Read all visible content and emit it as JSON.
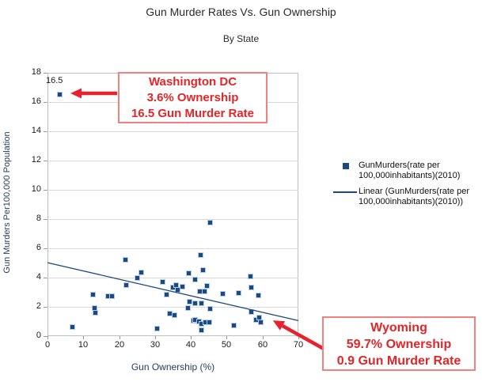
{
  "title": "Gun Murder Rates Vs. Gun Ownership",
  "subtitle": "By State",
  "colors": {
    "point": "#1b4a7e",
    "trendline": "#1f497d",
    "annotation_text": "#e42528",
    "annotation_border": "#f28080",
    "arrow": "#e8212e",
    "gridline": "#d9d9d9",
    "axis_title": "#243f60"
  },
  "chart_data": {
    "type": "scatter",
    "title": "Gun Murder Rates Vs. Gun Ownership",
    "subtitle": "By State",
    "xlabel": "Gun Ownership (%)",
    "ylabel": "Gun Murders Per100,000 Population",
    "xlim": [
      0,
      70
    ],
    "ylim": [
      0,
      18
    ],
    "xticks": [
      0,
      10,
      20,
      30,
      40,
      50,
      60,
      70
    ],
    "yticks": [
      0,
      2,
      4,
      6,
      8,
      10,
      12,
      14,
      16,
      18
    ],
    "grid": "horizontal",
    "legend_position": "right",
    "points": [
      [
        3.6,
        16.5
      ],
      [
        7.0,
        0.6
      ],
      [
        12.9,
        2.8
      ],
      [
        13.2,
        1.9
      ],
      [
        13.4,
        1.55
      ],
      [
        16.9,
        2.7
      ],
      [
        18.1,
        2.7
      ],
      [
        21.9,
        5.2
      ],
      [
        22.1,
        3.45
      ],
      [
        25.2,
        3.95
      ],
      [
        26.3,
        4.3
      ],
      [
        30.8,
        0.5
      ],
      [
        32.2,
        3.7
      ],
      [
        33.3,
        2.8
      ],
      [
        34.2,
        1.5
      ],
      [
        35.6,
        1.4
      ],
      [
        35.2,
        3.3
      ],
      [
        36.0,
        3.45
      ],
      [
        36.4,
        3.15
      ],
      [
        37.8,
        3.35
      ],
      [
        39.4,
        1.9
      ],
      [
        39.7,
        2.3
      ],
      [
        39.5,
        4.25
      ],
      [
        41.2,
        3.85
      ],
      [
        42.8,
        5.5
      ],
      [
        43.4,
        4.5
      ],
      [
        42.6,
        3.05
      ],
      [
        43.9,
        3.05
      ],
      [
        44.6,
        3.4
      ],
      [
        41.4,
        2.2
      ],
      [
        43.1,
        2.2
      ],
      [
        45.5,
        1.85
      ],
      [
        40.8,
        1.05
      ],
      [
        41.3,
        1.1
      ],
      [
        42.4,
        0.95
      ],
      [
        43.1,
        0.8
      ],
      [
        44.1,
        0.9
      ],
      [
        45.2,
        0.9
      ],
      [
        43.0,
        0.4
      ],
      [
        45.4,
        7.75
      ],
      [
        49.0,
        2.85
      ],
      [
        53.5,
        2.9
      ],
      [
        52.1,
        0.7
      ],
      [
        56.8,
        4.05
      ],
      [
        56.9,
        3.3
      ],
      [
        59.0,
        2.75
      ],
      [
        57.0,
        1.6
      ],
      [
        58.3,
        1.1
      ],
      [
        59.1,
        1.25
      ],
      [
        59.7,
        0.9
      ]
    ],
    "trendline": {
      "x1": 0,
      "y1": 5.02,
      "x2": 70,
      "y2": 1.06
    },
    "point_label": {
      "text": "16.5",
      "x": 3.6,
      "y": 16.5
    }
  },
  "legend": {
    "items": [
      {
        "marker": "square",
        "line1": "GunMurders(rate per",
        "line2": "100,000inhabitants)(2010)"
      },
      {
        "marker": "line",
        "line1": "Linear (GunMurders(rate per",
        "line2": "100,000inhabitants)(2010))"
      }
    ]
  },
  "annotations": {
    "dc": {
      "line1": "Washington DC",
      "line2": "3.6% Ownership",
      "line3": "16.5 Gun Murder Rate"
    },
    "wyoming": {
      "line1": "Wyoming",
      "line2": "59.7% Ownership",
      "line3": "0.9 Gun Murder Rate"
    }
  }
}
